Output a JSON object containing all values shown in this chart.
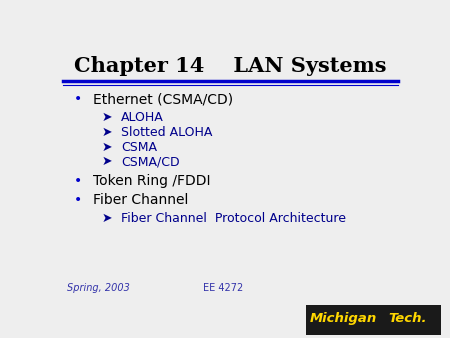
{
  "title": "Chapter 14    LAN Systems",
  "title_color": "#000000",
  "title_fontsize": 15,
  "slide_bg": "#eeeeee",
  "header_line_color1": "#0000cc",
  "header_line_color2": "#0000cc",
  "bullet_color": "#0000cc",
  "bullet_items": [
    {
      "level": 0,
      "text": "Ethernet (CSMA/CD)",
      "bullet": "•"
    },
    {
      "level": 1,
      "text": "ALOHA",
      "bullet": "➤"
    },
    {
      "level": 1,
      "text": "Slotted ALOHA",
      "bullet": "➤"
    },
    {
      "level": 1,
      "text": "CSMA",
      "bullet": "➤"
    },
    {
      "level": 1,
      "text": "CSMA/CD",
      "bullet": "➤"
    },
    {
      "level": 0,
      "text": "Token Ring /FDDI",
      "bullet": "•"
    },
    {
      "level": 0,
      "text": "Fiber Channel",
      "bullet": "•"
    },
    {
      "level": 1,
      "text": "Fiber Channel  Protocol Architecture",
      "bullet": "➤"
    }
  ],
  "footer_left": "Spring, 2003",
  "footer_center": "EE 4272",
  "footer_color": "#3333aa",
  "text_color": "#000000",
  "sub_text_color": "#00008b",
  "font_size_main": 10,
  "font_size_sub": 9,
  "font_size_footer": 7
}
